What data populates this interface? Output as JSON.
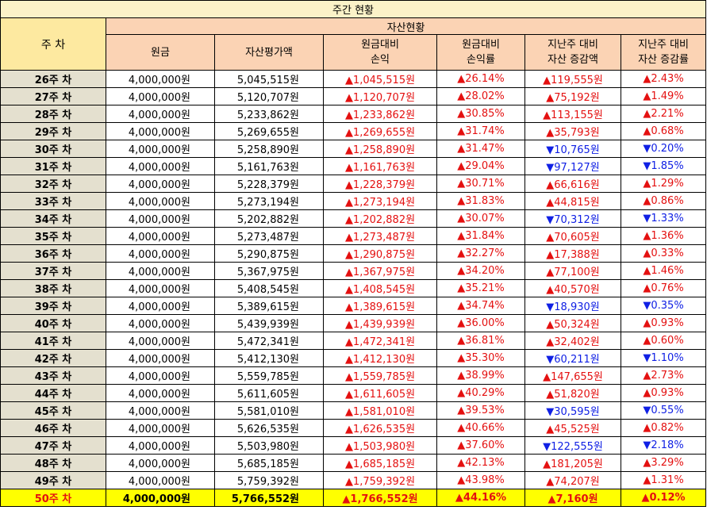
{
  "table": {
    "title": "주간 현황",
    "week_header": "주 차",
    "group_header": "자산현황",
    "columns": [
      {
        "line1": "원금",
        "line2": ""
      },
      {
        "line1": "자산평가액",
        "line2": ""
      },
      {
        "line1": "원금대비",
        "line2": "손익"
      },
      {
        "line1": "원금대비",
        "line2": "손익률"
      },
      {
        "line1": "지난주 대비",
        "line2": "자산 증감액"
      },
      {
        "line1": "지난주 대비",
        "line2": "자산 증감률"
      }
    ],
    "rows": [
      {
        "week": "26주 차",
        "principal": "4,000,000원",
        "valuation": "5,045,515원",
        "pl": "▲1,045,515원",
        "pl_rate": "▲26.14%",
        "wow": "▲119,555원",
        "wow_rate": "▲2.43%",
        "dir": "up"
      },
      {
        "week": "27주 차",
        "principal": "4,000,000원",
        "valuation": "5,120,707원",
        "pl": "▲1,120,707원",
        "pl_rate": "▲28.02%",
        "wow": "▲75,192원",
        "wow_rate": "▲1.49%",
        "dir": "up"
      },
      {
        "week": "28주 차",
        "principal": "4,000,000원",
        "valuation": "5,233,862원",
        "pl": "▲1,233,862원",
        "pl_rate": "▲30.85%",
        "wow": "▲113,155원",
        "wow_rate": "▲2.21%",
        "dir": "up"
      },
      {
        "week": "29주 차",
        "principal": "4,000,000원",
        "valuation": "5,269,655원",
        "pl": "▲1,269,655원",
        "pl_rate": "▲31.74%",
        "wow": "▲35,793원",
        "wow_rate": "▲0.68%",
        "dir": "up"
      },
      {
        "week": "30주 차",
        "principal": "4,000,000원",
        "valuation": "5,258,890원",
        "pl": "▲1,258,890원",
        "pl_rate": "▲31.47%",
        "wow": "▼10,765원",
        "wow_rate": "▼0.20%",
        "dir": "down"
      },
      {
        "week": "31주 차",
        "principal": "4,000,000원",
        "valuation": "5,161,763원",
        "pl": "▲1,161,763원",
        "pl_rate": "▲29.04%",
        "wow": "▼97,127원",
        "wow_rate": "▼1.85%",
        "dir": "down"
      },
      {
        "week": "32주 차",
        "principal": "4,000,000원",
        "valuation": "5,228,379원",
        "pl": "▲1,228,379원",
        "pl_rate": "▲30.71%",
        "wow": "▲66,616원",
        "wow_rate": "▲1.29%",
        "dir": "up"
      },
      {
        "week": "33주 차",
        "principal": "4,000,000원",
        "valuation": "5,273,194원",
        "pl": "▲1,273,194원",
        "pl_rate": "▲31.83%",
        "wow": "▲44,815원",
        "wow_rate": "▲0.86%",
        "dir": "up"
      },
      {
        "week": "34주 차",
        "principal": "4,000,000원",
        "valuation": "5,202,882원",
        "pl": "▲1,202,882원",
        "pl_rate": "▲30.07%",
        "wow": "▼70,312원",
        "wow_rate": "▼1.33%",
        "dir": "down"
      },
      {
        "week": "35주 차",
        "principal": "4,000,000원",
        "valuation": "5,273,487원",
        "pl": "▲1,273,487원",
        "pl_rate": "▲31.84%",
        "wow": "▲70,605원",
        "wow_rate": "▲1.36%",
        "dir": "up"
      },
      {
        "week": "36주 차",
        "principal": "4,000,000원",
        "valuation": "5,290,875원",
        "pl": "▲1,290,875원",
        "pl_rate": "▲32.27%",
        "wow": "▲17,388원",
        "wow_rate": "▲0.33%",
        "dir": "up"
      },
      {
        "week": "37주 차",
        "principal": "4,000,000원",
        "valuation": "5,367,975원",
        "pl": "▲1,367,975원",
        "pl_rate": "▲34.20%",
        "wow": "▲77,100원",
        "wow_rate": "▲1.46%",
        "dir": "up"
      },
      {
        "week": "38주 차",
        "principal": "4,000,000원",
        "valuation": "5,408,545원",
        "pl": "▲1,408,545원",
        "pl_rate": "▲35.21%",
        "wow": "▲40,570원",
        "wow_rate": "▲0.76%",
        "dir": "up"
      },
      {
        "week": "39주 차",
        "principal": "4,000,000원",
        "valuation": "5,389,615원",
        "pl": "▲1,389,615원",
        "pl_rate": "▲34.74%",
        "wow": "▼18,930원",
        "wow_rate": "▼0.35%",
        "dir": "down"
      },
      {
        "week": "40주 차",
        "principal": "4,000,000원",
        "valuation": "5,439,939원",
        "pl": "▲1,439,939원",
        "pl_rate": "▲36.00%",
        "wow": "▲50,324원",
        "wow_rate": "▲0.93%",
        "dir": "up"
      },
      {
        "week": "41주 차",
        "principal": "4,000,000원",
        "valuation": "5,472,341원",
        "pl": "▲1,472,341원",
        "pl_rate": "▲36.81%",
        "wow": "▲32,402원",
        "wow_rate": "▲0.60%",
        "dir": "up"
      },
      {
        "week": "42주 차",
        "principal": "4,000,000원",
        "valuation": "5,412,130원",
        "pl": "▲1,412,130원",
        "pl_rate": "▲35.30%",
        "wow": "▼60,211원",
        "wow_rate": "▼1.10%",
        "dir": "down"
      },
      {
        "week": "43주 차",
        "principal": "4,000,000원",
        "valuation": "5,559,785원",
        "pl": "▲1,559,785원",
        "pl_rate": "▲38.99%",
        "wow": "▲147,655원",
        "wow_rate": "▲2.73%",
        "dir": "up"
      },
      {
        "week": "44주 차",
        "principal": "4,000,000원",
        "valuation": "5,611,605원",
        "pl": "▲1,611,605원",
        "pl_rate": "▲40.29%",
        "wow": "▲51,820원",
        "wow_rate": "▲0.93%",
        "dir": "up"
      },
      {
        "week": "45주 차",
        "principal": "4,000,000원",
        "valuation": "5,581,010원",
        "pl": "▲1,581,010원",
        "pl_rate": "▲39.53%",
        "wow": "▼30,595원",
        "wow_rate": "▼0.55%",
        "dir": "down"
      },
      {
        "week": "46주 차",
        "principal": "4,000,000원",
        "valuation": "5,626,535원",
        "pl": "▲1,626,535원",
        "pl_rate": "▲40.66%",
        "wow": "▲45,525원",
        "wow_rate": "▲0.82%",
        "dir": "up"
      },
      {
        "week": "47주 차",
        "principal": "4,000,000원",
        "valuation": "5,503,980원",
        "pl": "▲1,503,980원",
        "pl_rate": "▲37.60%",
        "wow": "▼122,555원",
        "wow_rate": "▼2.18%",
        "dir": "down"
      },
      {
        "week": "48주 차",
        "principal": "4,000,000원",
        "valuation": "5,685,185원",
        "pl": "▲1,685,185원",
        "pl_rate": "▲42.13%",
        "wow": "▲181,205원",
        "wow_rate": "▲3.29%",
        "dir": "up"
      },
      {
        "week": "49주 차",
        "principal": "4,000,000원",
        "valuation": "5,759,392원",
        "pl": "▲1,759,392원",
        "pl_rate": "▲43.98%",
        "wow": "▲74,207원",
        "wow_rate": "▲1.31%",
        "dir": "up"
      },
      {
        "week": "50주 차",
        "principal": "4,000,000원",
        "valuation": "5,766,552원",
        "pl": "▲1,766,552원",
        "pl_rate": "▲44.16%",
        "wow": "▲7,160원",
        "wow_rate": "▲0.12%",
        "dir": "up",
        "highlight": true
      }
    ]
  },
  "colors": {
    "up": "#e41010",
    "down": "#1020e4",
    "title_bg": "#fbf2c8",
    "header_bg": "#fbd3b4",
    "week_bg": "#e4e0cf",
    "highlight_bg": "#ffff00"
  }
}
